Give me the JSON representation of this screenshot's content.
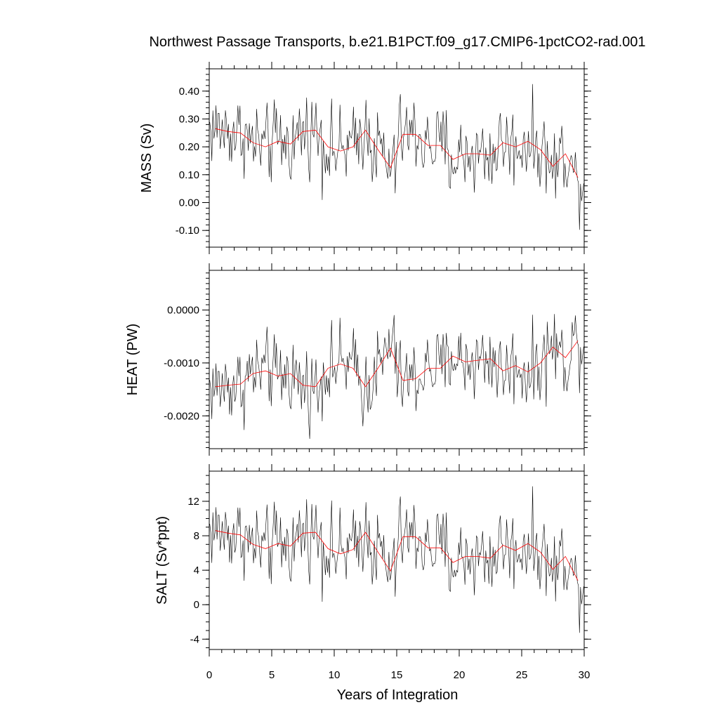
{
  "title": "Northwest Passage Transports, b.e21.B1PCT.f09_g17.CMIP6-1pctCO2-rad.001",
  "xlabel": "Years of Integration",
  "colors": {
    "monthly": "#000000",
    "annual": "#ff0000"
  },
  "chart_data": [
    {
      "type": "line",
      "ylabel": "MASS (Sv)",
      "xlim": [
        0,
        30
      ],
      "ylim": [
        -0.16,
        0.48
      ],
      "xticks": [
        "0",
        "5",
        "10",
        "15",
        "20",
        "25",
        "30"
      ],
      "yticks": [
        {
          "v": 0.4,
          "label": "0.40"
        },
        {
          "v": 0.3,
          "label": "0.30"
        },
        {
          "v": 0.2,
          "label": "0.20"
        },
        {
          "v": 0.1,
          "label": "0.10"
        },
        {
          "v": 0.0,
          "label": "0.00"
        },
        {
          "v": -0.1,
          "label": "-0.10"
        }
      ],
      "minor_step": 0.02,
      "series": [
        {
          "style": "annual",
          "x": [
            0.5,
            1.5,
            2.5,
            3.5,
            4.5,
            5.5,
            6.5,
            7.5,
            8.5,
            9.5,
            10.5,
            11.5,
            12.5,
            13.5,
            14.5,
            15.5,
            16.5,
            17.5,
            18.5,
            19.5,
            20.5,
            21.5,
            22.5,
            23.5,
            24.5,
            25.5,
            26.5,
            27.5,
            28.5,
            29.5
          ],
          "y": [
            0.265,
            0.255,
            0.25,
            0.215,
            0.2,
            0.22,
            0.21,
            0.255,
            0.26,
            0.2,
            0.185,
            0.2,
            0.26,
            0.19,
            0.125,
            0.245,
            0.245,
            0.205,
            0.205,
            0.155,
            0.175,
            0.175,
            0.17,
            0.215,
            0.2,
            0.22,
            0.19,
            0.13,
            0.175,
            0.09
          ]
        }
      ]
    },
    {
      "type": "line",
      "ylabel": "HEAT (PW)",
      "xlim": [
        0,
        30
      ],
      "ylim": [
        -0.00262,
        0.00075
      ],
      "xticks": [
        "0",
        "5",
        "10",
        "15",
        "20",
        "25",
        "30"
      ],
      "yticks": [
        {
          "v": 0.0,
          "label": "0.0000"
        },
        {
          "v": -0.001,
          "label": "-0.0010"
        },
        {
          "v": -0.002,
          "label": "-0.0020"
        }
      ],
      "minor_step": 0.0001,
      "series": [
        {
          "style": "annual",
          "x": [
            0.5,
            1.5,
            2.5,
            3.5,
            4.5,
            5.5,
            6.5,
            7.5,
            8.5,
            9.5,
            10.5,
            11.5,
            12.5,
            13.5,
            14.5,
            15.5,
            16.5,
            17.5,
            18.5,
            19.5,
            20.5,
            21.5,
            22.5,
            23.5,
            24.5,
            25.5,
            26.5,
            27.5,
            28.5,
            29.5
          ],
          "y": [
            -0.00145,
            -0.00142,
            -0.0014,
            -0.0012,
            -0.00115,
            -0.00125,
            -0.0012,
            -0.00142,
            -0.00145,
            -0.0011,
            -0.00102,
            -0.0011,
            -0.00145,
            -0.0011,
            -0.00072,
            -0.00133,
            -0.0013,
            -0.0011,
            -0.0011,
            -0.00087,
            -0.00098,
            -0.00095,
            -0.00092,
            -0.00115,
            -0.00105,
            -0.00117,
            -0.001,
            -0.0007,
            -0.0009,
            -0.00058
          ]
        }
      ]
    },
    {
      "type": "line",
      "ylabel": "SALT (Sv*ppt)",
      "xlim": [
        0,
        30
      ],
      "ylim": [
        -5.2,
        15.5
      ],
      "xticks": [
        "0",
        "5",
        "10",
        "15",
        "20",
        "25",
        "30"
      ],
      "yticks": [
        {
          "v": 12,
          "label": "12"
        },
        {
          "v": 8,
          "label": "8"
        },
        {
          "v": 4,
          "label": "4"
        },
        {
          "v": 0,
          "label": "0"
        },
        {
          "v": -4,
          "label": "-4"
        }
      ],
      "minor_step": 1,
      "series": [
        {
          "style": "annual",
          "x": [
            0.5,
            1.5,
            2.5,
            3.5,
            4.5,
            5.5,
            6.5,
            7.5,
            8.5,
            9.5,
            10.5,
            11.5,
            12.5,
            13.5,
            14.5,
            15.5,
            16.5,
            17.5,
            18.5,
            19.5,
            20.5,
            21.5,
            22.5,
            23.5,
            24.5,
            25.5,
            26.5,
            27.5,
            28.5,
            29.5
          ],
          "y": [
            8.6,
            8.3,
            8.1,
            7.0,
            6.5,
            7.1,
            6.8,
            8.3,
            8.4,
            6.5,
            5.9,
            6.4,
            8.4,
            6.1,
            3.9,
            7.9,
            7.9,
            6.6,
            6.6,
            4.9,
            5.6,
            5.6,
            5.4,
            6.9,
            6.3,
            7.1,
            6.1,
            4.1,
            5.6,
            2.8
          ]
        }
      ]
    }
  ]
}
